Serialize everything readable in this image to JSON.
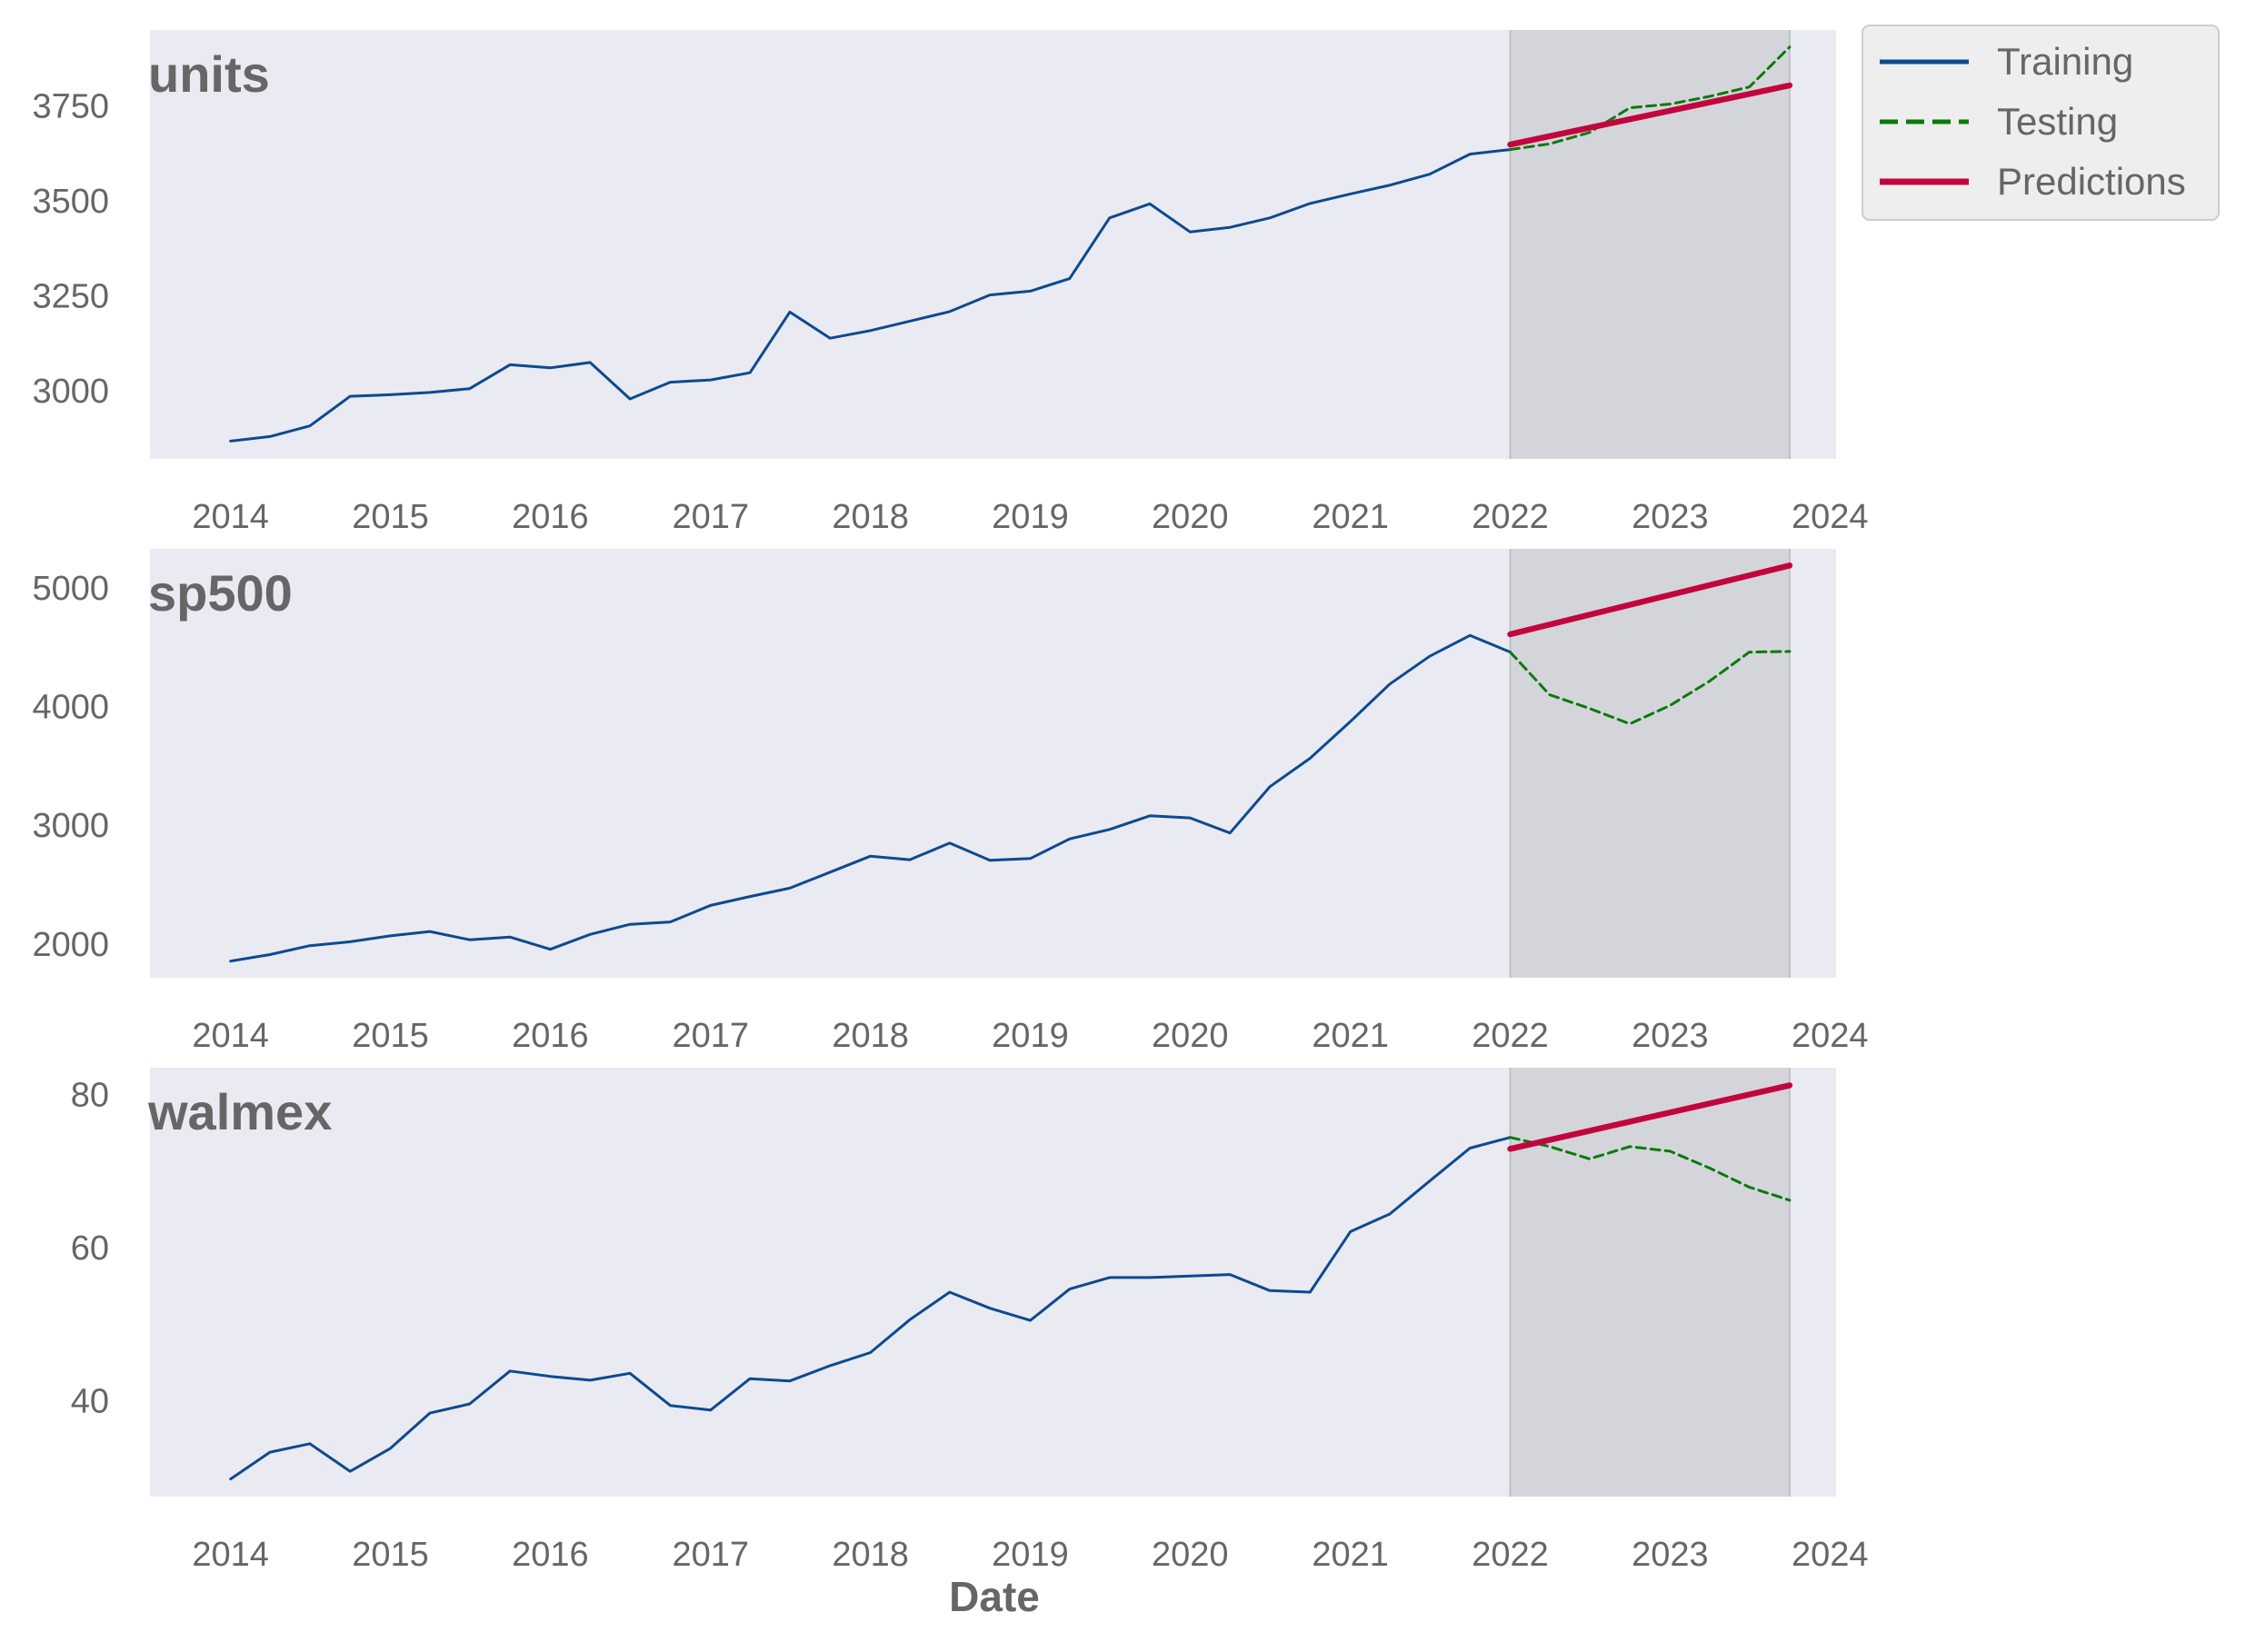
{
  "figure": {
    "xlabel": "Date",
    "legend": {
      "placement": "upper right, outside the plot area",
      "entries": [
        {
          "label": "Training",
          "color": "#0d4a8f",
          "style": "solid"
        },
        {
          "label": "Testing",
          "color": "#0b7a0b",
          "style": "dashed"
        },
        {
          "label": "Predictions",
          "color": "#c2063d",
          "style": "solid thick"
        }
      ]
    },
    "colors": {
      "plot_background": "#eaeaf2",
      "test_region": "#d4d5da",
      "training": "#0d4a8f",
      "testing": "#0b7a0b",
      "predictions": "#c2063d"
    }
  },
  "chart_data": [
    {
      "type": "line",
      "title": "units",
      "x_tick_labels": [
        "2014",
        "2015",
        "2016",
        "2017",
        "2018",
        "2019",
        "2020",
        "2021",
        "2022",
        "2023",
        "2024"
      ],
      "y_tick_labels": [
        "3000",
        "3250",
        "3500",
        "3750"
      ],
      "ylim": [
        2820,
        3950
      ],
      "test_region": [
        "2022-01-01",
        "2023-10-01"
      ],
      "grid": false,
      "series": [
        {
          "name": "Training",
          "style": "solid",
          "x": [
            "2014-01-01",
            "2014-04-01",
            "2014-07-01",
            "2014-10-01",
            "2015-01-01",
            "2015-04-01",
            "2015-07-01",
            "2015-10-01",
            "2016-01-01",
            "2016-04-01",
            "2016-07-01",
            "2016-10-01",
            "2017-01-01",
            "2017-04-01",
            "2017-07-01",
            "2017-10-01",
            "2018-01-01",
            "2018-04-01",
            "2018-07-01",
            "2018-10-01",
            "2019-01-01",
            "2019-04-01",
            "2019-07-01",
            "2019-10-01",
            "2020-01-01",
            "2020-04-01",
            "2020-07-01",
            "2020-10-01",
            "2021-01-01",
            "2021-04-01",
            "2021-07-01",
            "2021-10-01",
            "2022-01-01"
          ],
          "y": [
            2867,
            2879,
            2907,
            2985,
            2989,
            2995,
            3005,
            3068,
            3060,
            3074,
            2978,
            3022,
            3028,
            3047,
            3207,
            3138,
            3158,
            3183,
            3208,
            3252,
            3262,
            3295,
            3455,
            3492,
            3418,
            3430,
            3455,
            3493,
            3518,
            3541,
            3570,
            3623,
            3635
          ]
        },
        {
          "name": "Testing",
          "style": "dashed",
          "x": [
            "2022-01-01",
            "2022-04-01",
            "2022-07-01",
            "2022-10-01",
            "2023-01-01",
            "2023-04-01",
            "2023-07-01",
            "2023-10-01"
          ],
          "y": [
            3635,
            3650,
            3680,
            3745,
            3755,
            3775,
            3800,
            3905
          ]
        },
        {
          "name": "Predictions",
          "style": "solid",
          "x": [
            "2022-01-01",
            "2023-10-01"
          ],
          "y": [
            3648,
            3804
          ]
        }
      ]
    },
    {
      "type": "line",
      "title": "sp500",
      "x_tick_labels": [
        "2014",
        "2015",
        "2016",
        "2017",
        "2018",
        "2019",
        "2020",
        "2021",
        "2022",
        "2023",
        "2024"
      ],
      "y_tick_labels": [
        "2000",
        "3000",
        "4000",
        "5000"
      ],
      "ylim": [
        1715,
        5330
      ],
      "test_region": [
        "2022-01-01",
        "2023-10-01"
      ],
      "grid": false,
      "series": [
        {
          "name": "Training",
          "style": "solid",
          "x": [
            "2014-01-01",
            "2014-04-01",
            "2014-07-01",
            "2014-10-01",
            "2015-01-01",
            "2015-04-01",
            "2015-07-01",
            "2015-10-01",
            "2016-01-01",
            "2016-04-01",
            "2016-07-01",
            "2016-10-01",
            "2017-01-01",
            "2017-04-01",
            "2017-07-01",
            "2017-10-01",
            "2018-01-01",
            "2018-04-01",
            "2018-07-01",
            "2018-10-01",
            "2019-01-01",
            "2019-04-01",
            "2019-07-01",
            "2019-10-01",
            "2020-01-01",
            "2020-04-01",
            "2020-07-01",
            "2020-10-01",
            "2021-01-01",
            "2021-04-01",
            "2021-07-01",
            "2021-10-01",
            "2022-01-01"
          ],
          "y": [
            1855,
            1910,
            1985,
            2018,
            2068,
            2105,
            2035,
            2058,
            1955,
            2080,
            2165,
            2185,
            2325,
            2400,
            2470,
            2605,
            2740,
            2710,
            2850,
            2705,
            2720,
            2885,
            2965,
            3080,
            3062,
            2935,
            3325,
            3565,
            3875,
            4190,
            4425,
            4600,
            4460
          ]
        },
        {
          "name": "Testing",
          "style": "dashed",
          "x": [
            "2022-01-01",
            "2022-04-01",
            "2022-07-01",
            "2022-10-01",
            "2023-01-01",
            "2023-04-01",
            "2023-07-01",
            "2023-10-01"
          ],
          "y": [
            4460,
            4100,
            3985,
            3855,
            4010,
            4215,
            4460,
            4465
          ]
        },
        {
          "name": "Predictions",
          "style": "solid",
          "x": [
            "2022-01-01",
            "2023-10-01"
          ],
          "y": [
            4610,
            5190
          ]
        }
      ]
    },
    {
      "type": "line",
      "title": "walmex",
      "x_tick_labels": [
        "2014",
        "2015",
        "2016",
        "2017",
        "2018",
        "2019",
        "2020",
        "2021",
        "2022",
        "2023",
        "2024"
      ],
      "y_tick_labels": [
        "40",
        "60",
        "80"
      ],
      "ylim": [
        27.5,
        83.5
      ],
      "test_region": [
        "2022-01-01",
        "2023-10-01"
      ],
      "grid": false,
      "series": [
        {
          "name": "Training",
          "style": "solid",
          "x": [
            "2014-01-01",
            "2014-04-01",
            "2014-07-01",
            "2014-10-01",
            "2015-01-01",
            "2015-04-01",
            "2015-07-01",
            "2015-10-01",
            "2016-01-01",
            "2016-04-01",
            "2016-07-01",
            "2016-10-01",
            "2017-01-01",
            "2017-04-01",
            "2017-07-01",
            "2017-10-01",
            "2018-01-01",
            "2018-04-01",
            "2018-07-01",
            "2018-10-01",
            "2019-01-01",
            "2019-04-01",
            "2019-07-01",
            "2019-10-01",
            "2020-01-01",
            "2020-04-01",
            "2020-07-01",
            "2020-10-01",
            "2021-01-01",
            "2021-04-01",
            "2021-07-01",
            "2021-10-01",
            "2022-01-01"
          ],
          "y": [
            29.8,
            33.3,
            34.4,
            30.8,
            33.8,
            38.4,
            39.6,
            43.9,
            43.2,
            42.7,
            43.6,
            39.4,
            38.8,
            42.9,
            42.6,
            44.6,
            46.3,
            50.6,
            54.2,
            52.1,
            50.5,
            54.6,
            56.1,
            56.1,
            56.3,
            56.5,
            54.4,
            54.2,
            62.1,
            64.4,
            68.7,
            73.0,
            74.4
          ]
        },
        {
          "name": "Testing",
          "style": "dashed",
          "x": [
            "2022-01-01",
            "2022-04-01",
            "2022-07-01",
            "2022-10-01",
            "2023-01-01",
            "2023-04-01",
            "2023-07-01",
            "2023-10-01"
          ],
          "y": [
            74.4,
            73.2,
            71.6,
            73.2,
            72.6,
            70.4,
            67.9,
            66.2
          ]
        },
        {
          "name": "Predictions",
          "style": "solid",
          "x": [
            "2022-01-01",
            "2023-10-01"
          ],
          "y": [
            72.9,
            81.2
          ]
        }
      ]
    }
  ]
}
